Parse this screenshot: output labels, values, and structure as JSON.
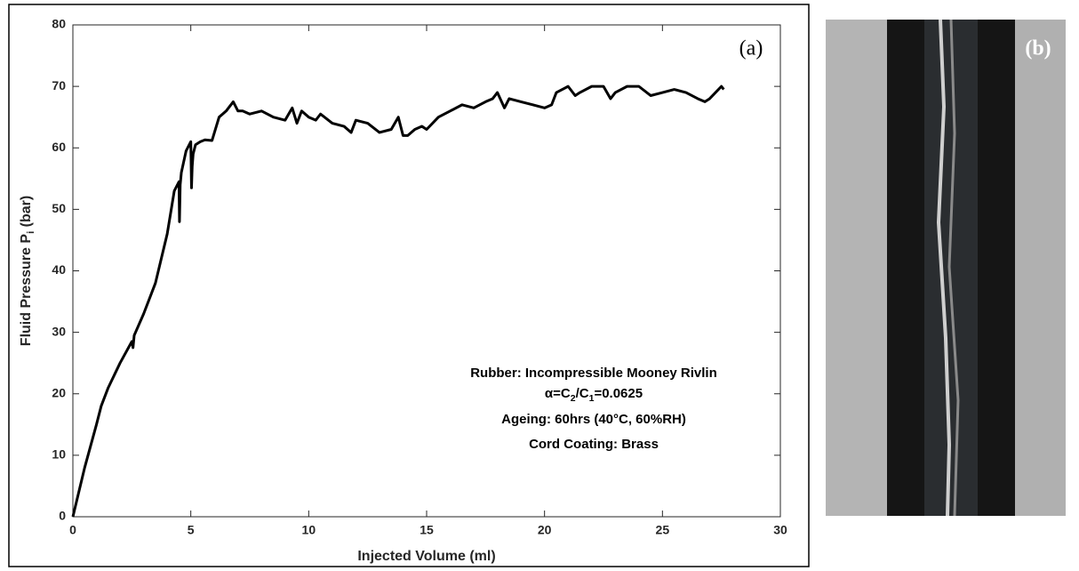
{
  "chart_data": {
    "type": "line",
    "xlabel": "Injected Volume (ml)",
    "ylabel": [
      "Fluid Pressure P",
      "i",
      " (bar)"
    ],
    "xlim": [
      0,
      30
    ],
    "ylim": [
      0,
      80
    ],
    "xticks": [
      0,
      5,
      10,
      15,
      20,
      25,
      30
    ],
    "yticks": [
      0,
      10,
      20,
      30,
      40,
      50,
      60,
      70,
      80
    ],
    "grid": false,
    "series": [
      {
        "color": "#000000",
        "x": [
          0,
          0.5,
          1,
          1.2,
          1.5,
          2,
          2.5,
          2.55,
          2.6,
          3,
          3.5,
          4,
          4.3,
          4.5,
          4.52,
          4.55,
          4.6,
          4.8,
          5,
          5.03,
          5.06,
          5.1,
          5.2,
          5.4,
          5.6,
          5.9,
          6.2,
          6.5,
          6.8,
          7,
          7.2,
          7.5,
          8,
          8.5,
          9,
          9.3,
          9.5,
          9.7,
          10,
          10.3,
          10.5,
          11,
          11.5,
          11.8,
          12,
          12.5,
          13,
          13.5,
          13.8,
          14,
          14.2,
          14.5,
          14.8,
          15,
          15.5,
          16,
          16.5,
          17,
          17.5,
          17.8,
          18,
          18.3,
          18.5,
          19,
          19.5,
          20,
          20.3,
          20.5,
          21,
          21.3,
          21.5,
          22,
          22.5,
          22.8,
          23,
          23.5,
          24,
          24.5,
          25,
          25.5,
          26,
          26.5,
          26.8,
          27,
          27.5,
          27.6
        ],
        "values": [
          0,
          8,
          15,
          18,
          21,
          25,
          28.5,
          27.5,
          29.5,
          33,
          38,
          46,
          53,
          54.5,
          48,
          54,
          56,
          59.5,
          61,
          53.5,
          57,
          59,
          60.5,
          61,
          61.3,
          61.2,
          65,
          66,
          67.5,
          66,
          66,
          65.5,
          66,
          65,
          64.5,
          66.5,
          64,
          66,
          65,
          64.5,
          65.5,
          64,
          63.5,
          62.5,
          64.5,
          64,
          62.5,
          63,
          65,
          62,
          62,
          63,
          63.5,
          63,
          65,
          66,
          67,
          66.5,
          67.5,
          68,
          69,
          66.5,
          68,
          67.5,
          67,
          66.5,
          67,
          69,
          70,
          68.5,
          69,
          70,
          70,
          68,
          69,
          70,
          70,
          68.5,
          69,
          69.5,
          69,
          68,
          67.5,
          68,
          70,
          69.5
        ]
      }
    ],
    "annotations": {
      "panel_a": "(a)",
      "panel_b": "(b)",
      "rubber": "Rubber: Incompressible Mooney Rivlin",
      "alpha": [
        "α=C",
        "2",
        "/C",
        "1",
        "=0.0625"
      ],
      "ageing": "Ageing: 60hrs (40°C, 60%RH)",
      "coating": "Cord Coating: Brass"
    }
  }
}
